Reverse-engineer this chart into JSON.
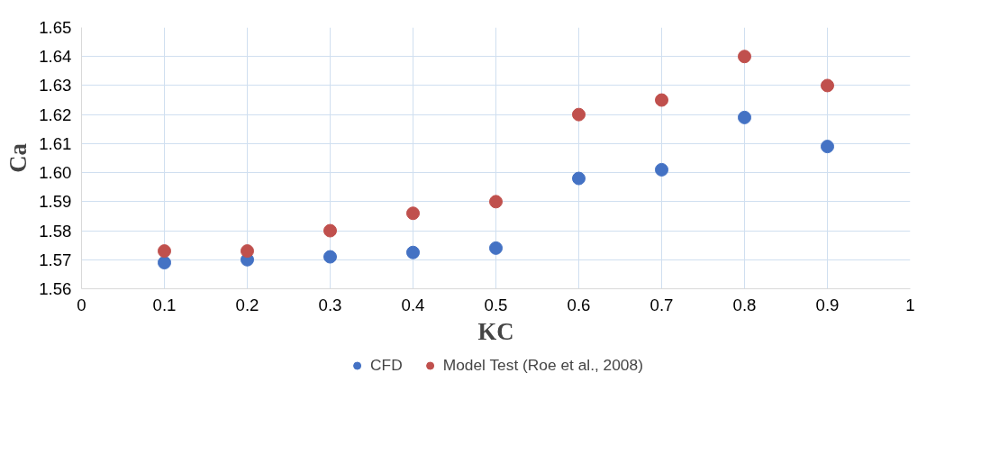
{
  "chart_data": {
    "type": "scatter",
    "xlabel": "KC",
    "ylabel": "Ca",
    "x": [
      0.1,
      0.2,
      0.3,
      0.4,
      0.5,
      0.6,
      0.7,
      0.8,
      0.9
    ],
    "series": [
      {
        "name": "CFD",
        "color": "#4472c4",
        "values": [
          1.569,
          1.57,
          1.571,
          1.5725,
          1.574,
          1.598,
          1.601,
          1.619,
          1.609
        ]
      },
      {
        "name": "Model Test (Roe et al., 2008)",
        "color": "#c0504d",
        "values": [
          1.573,
          1.573,
          1.58,
          1.586,
          1.59,
          1.62,
          1.625,
          1.64,
          1.63
        ]
      }
    ],
    "xlim": [
      0,
      1
    ],
    "xticks": [
      0,
      0.1,
      0.2,
      0.3,
      0.4,
      0.5,
      0.6,
      0.7,
      0.8,
      0.9,
      1
    ],
    "ylim": [
      1.56,
      1.65
    ],
    "yticks": [
      {
        "value": 1.56,
        "label": "1.56"
      },
      {
        "value": 1.57,
        "label": "1.57"
      },
      {
        "value": 1.58,
        "label": "1.58"
      },
      {
        "value": 1.59,
        "label": "1.59"
      },
      {
        "value": 1.6,
        "label": "1.60"
      },
      {
        "value": 1.61,
        "label": "1.61"
      },
      {
        "value": 1.62,
        "label": "1.62"
      },
      {
        "value": 1.63,
        "label": "1.63"
      },
      {
        "value": 1.64,
        "label": "1.64"
      },
      {
        "value": 1.65,
        "label": "1.65"
      }
    ],
    "grid": true,
    "legend": "bottom",
    "marker": "circle"
  }
}
